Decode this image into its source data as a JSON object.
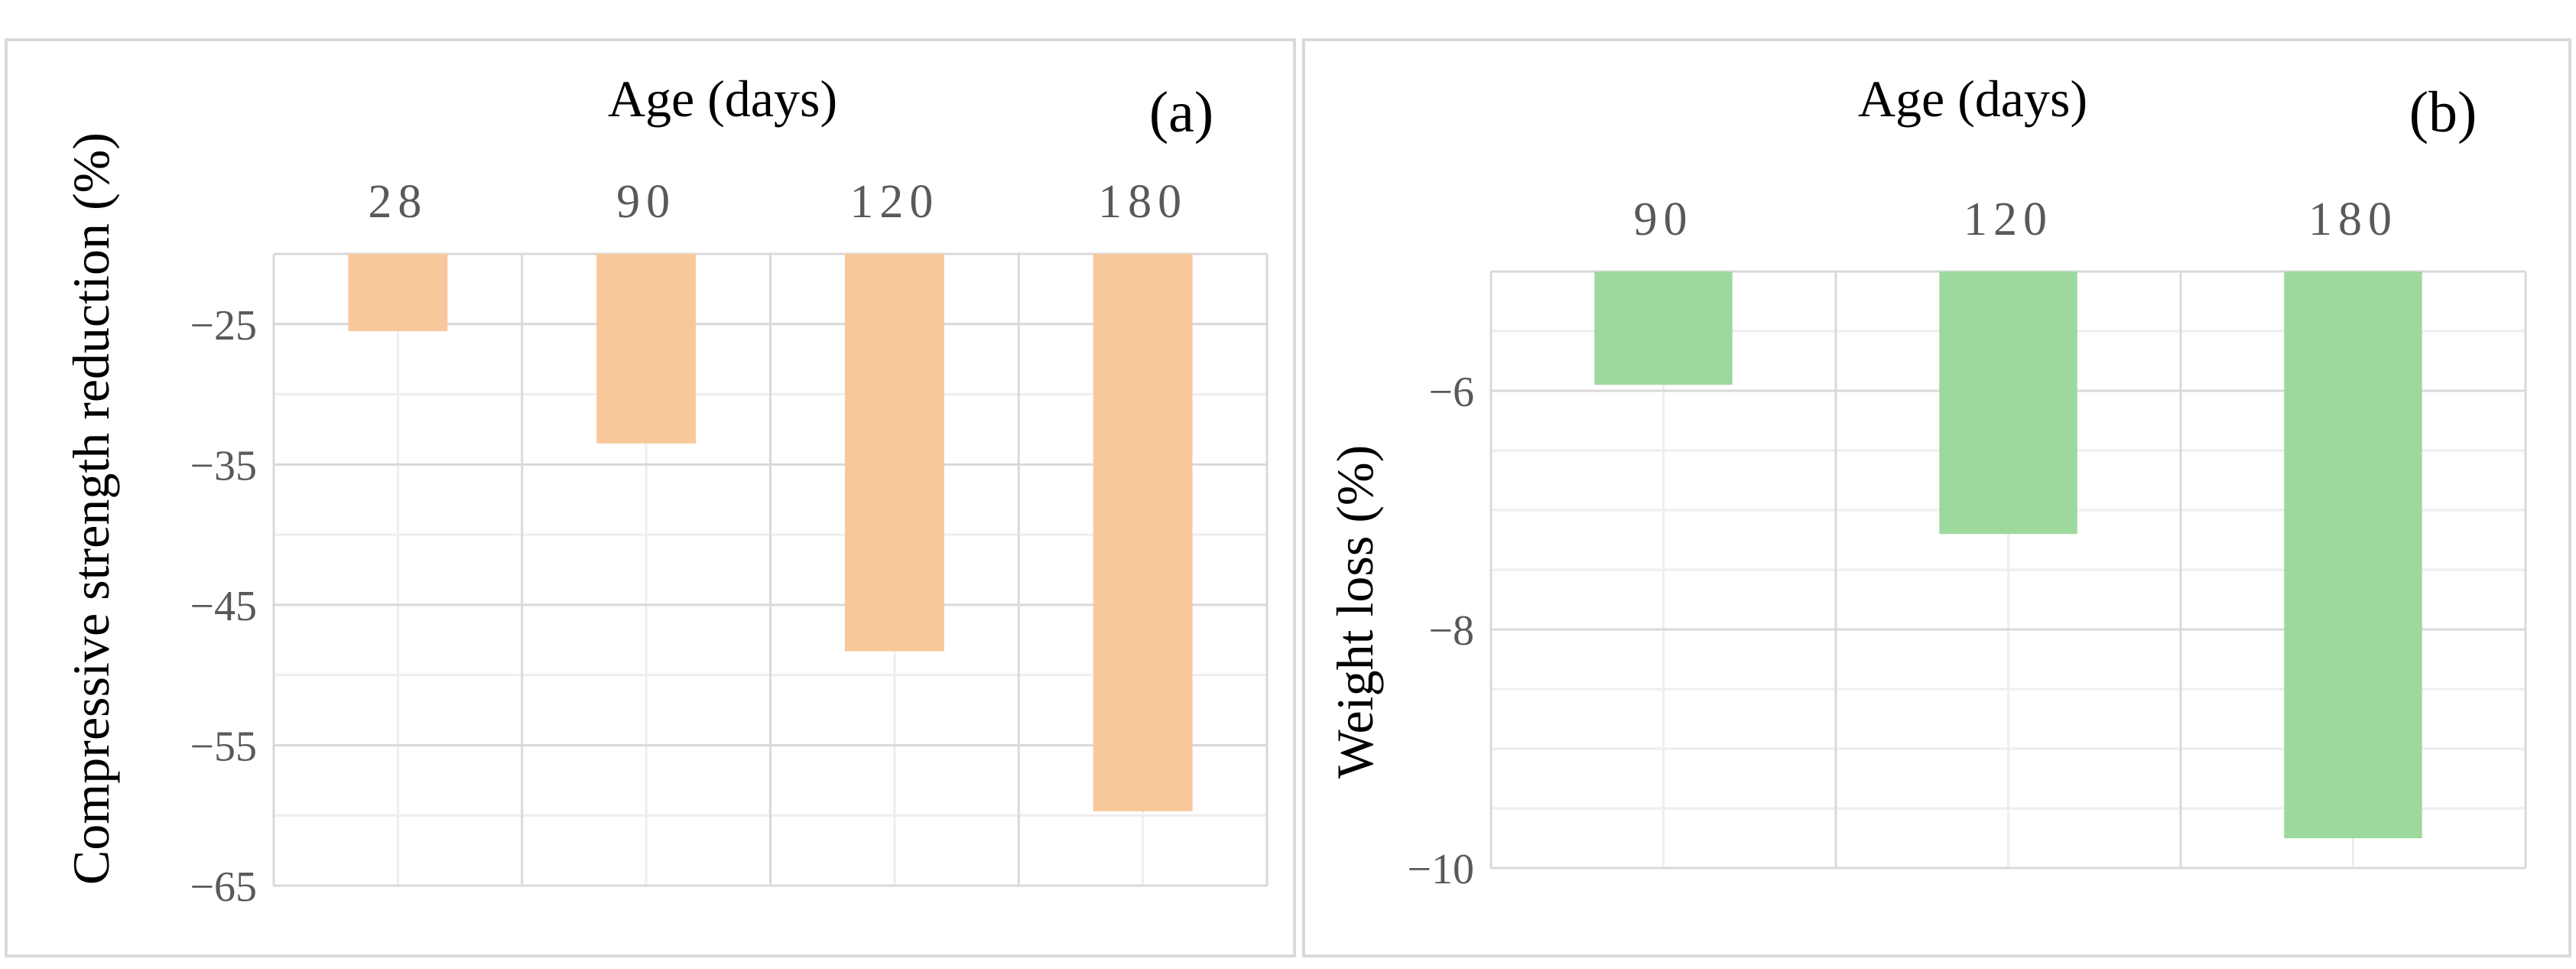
{
  "chart_data": [
    {
      "type": "bar",
      "panel_label": "(a)",
      "xlabel": "Age (days)",
      "ylabel": "Compressive strength reduction (%)",
      "categories": [
        "28",
        "90",
        "120",
        "180"
      ],
      "values": [
        -25.5,
        -33.5,
        -48.3,
        -59.7
      ],
      "yticks": [
        "−25",
        "−35",
        "−45",
        "−55",
        "−65"
      ],
      "ytick_values": [
        -25,
        -35,
        -45,
        -55,
        -65
      ],
      "ylim": [
        -65,
        -20
      ],
      "x_axis_position": "top",
      "grid": true,
      "bar_color": "#f9c89a"
    },
    {
      "type": "bar",
      "panel_label": "(b)",
      "xlabel": "Age (days)",
      "ylabel": "Weight loss (%)",
      "categories": [
        "90",
        "120",
        "180"
      ],
      "values": [
        -5.95,
        -7.2,
        -9.75
      ],
      "yticks": [
        "−6",
        "−8",
        "−10"
      ],
      "ytick_values": [
        -6,
        -8,
        -10
      ],
      "ylim": [
        -10,
        -5
      ],
      "x_axis_position": "top",
      "grid": true,
      "bar_color": "#9dd89d"
    }
  ]
}
